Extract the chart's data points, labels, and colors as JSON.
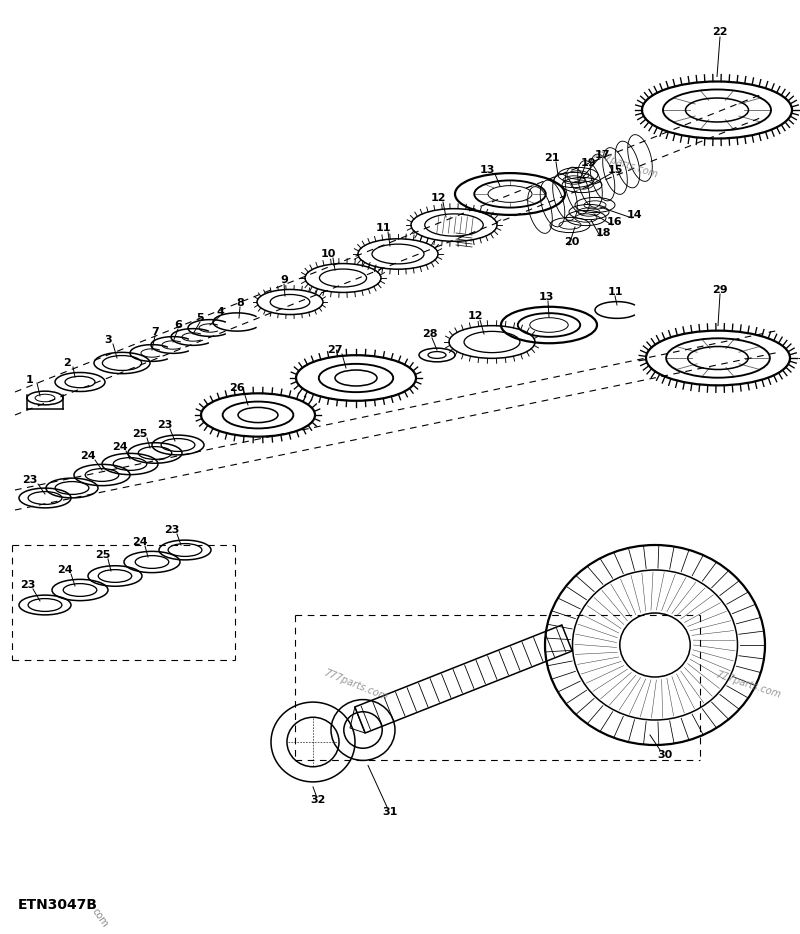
{
  "bg_color": "#ffffff",
  "line_color": "#000000",
  "fig_width": 8.0,
  "fig_height": 9.34,
  "title": "ETN3047B",
  "dpi": 100,
  "watermark": "777parts.com"
}
